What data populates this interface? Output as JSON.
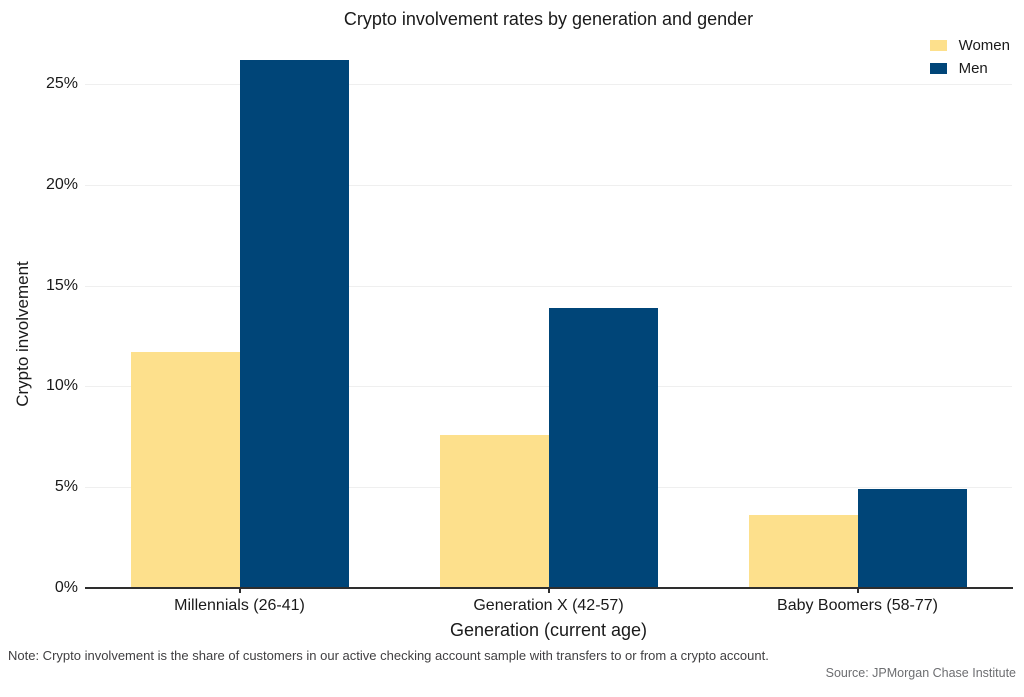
{
  "note": "Note: Crypto involvement is the share of customers in our active checking account sample with transfers to or from a crypto account.",
  "source": "Source: JPMorgan Chase Institute",
  "colors": {
    "women": "#FDE08C",
    "men": "#004578",
    "axis": "#2E2E2E",
    "gridline": "#EFEFEF"
  },
  "chart_data": {
    "type": "bar",
    "title": "Crypto involvement rates by generation and gender",
    "categories": [
      "Millennials (26-41)",
      "Generation X (42-57)",
      "Baby Boomers (58-77)"
    ],
    "series": [
      {
        "name": "Women",
        "color": "#FDE08C",
        "values": [
          11.7,
          7.6,
          3.6
        ]
      },
      {
        "name": "Men",
        "color": "#004578",
        "values": [
          26.2,
          13.9,
          4.9
        ]
      }
    ],
    "xlabel": "Generation (current age)",
    "ylabel": "Crypto involvement",
    "ylim": [
      0,
      26.5
    ],
    "yticks": [
      {
        "value": 0,
        "label": "0%"
      },
      {
        "value": 5,
        "label": "5%"
      },
      {
        "value": 10,
        "label": "10%"
      },
      {
        "value": 15,
        "label": "15%"
      },
      {
        "value": 20,
        "label": "20%"
      },
      {
        "value": 25,
        "label": "25%"
      }
    ],
    "grid": true,
    "legend_position": "top-right"
  }
}
